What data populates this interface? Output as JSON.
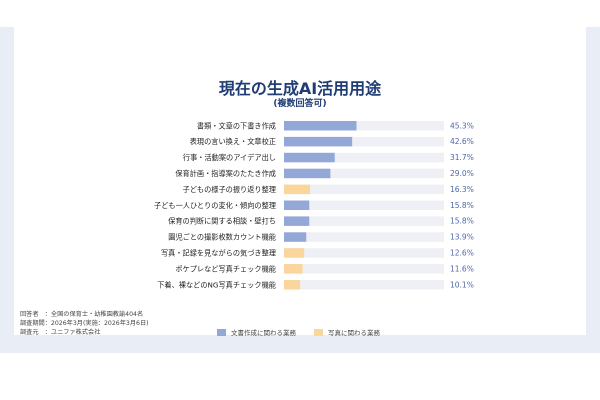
{
  "chart_data": {
    "type": "bar",
    "orientation": "horizontal",
    "title": "現在の生成AI活用用途",
    "subtitle": "(複数回答可)",
    "xlim": [
      0,
      100
    ],
    "value_suffix": "%",
    "categories": [
      "書類・文章の下書き作成",
      "表現の言い換え・文章校正",
      "行事・活動案のアイデア出し",
      "保育計画・指導案のたたき作成",
      "子どもの様子の振り返り整理",
      "子ども一人ひとりの変化・傾向の整理",
      "保育の判断に関する相談・壁打ち",
      "園児ごとの撮影枚数カウント機能",
      "写真・記録を見ながらの気づき整理",
      "ポケプレなど写真チェック機能",
      "下着、裸などのNG写真チェック機能"
    ],
    "values": [
      45.3,
      42.6,
      31.7,
      29.0,
      16.3,
      15.8,
      15.8,
      13.9,
      12.6,
      11.6,
      10.1
    ],
    "value_labels": [
      "45.3%",
      "42.6%",
      "31.7%",
      "29.0%",
      "16.3%",
      "15.8%",
      "15.8%",
      "13.9%",
      "12.6%",
      "11.6%",
      "10.1%"
    ],
    "groups": [
      "doc",
      "doc",
      "doc",
      "doc",
      "photo",
      "doc",
      "doc",
      "doc",
      "photo",
      "photo",
      "photo"
    ],
    "legend": [
      {
        "key": "doc",
        "label": "文書作成に関わる業務",
        "color": "#94a8d8"
      },
      {
        "key": "photo",
        "label": "写真に関わる業務",
        "color": "#fad59c"
      }
    ],
    "track_color": "#eef0f5",
    "legend_position": "bottom"
  },
  "footnotes": [
    "回答者　：全国の保育士・幼稚園教諭404名",
    "調査期間：2026年3月(実施：2026年3月6日)",
    "調査元　：ユニファ株式会社"
  ]
}
